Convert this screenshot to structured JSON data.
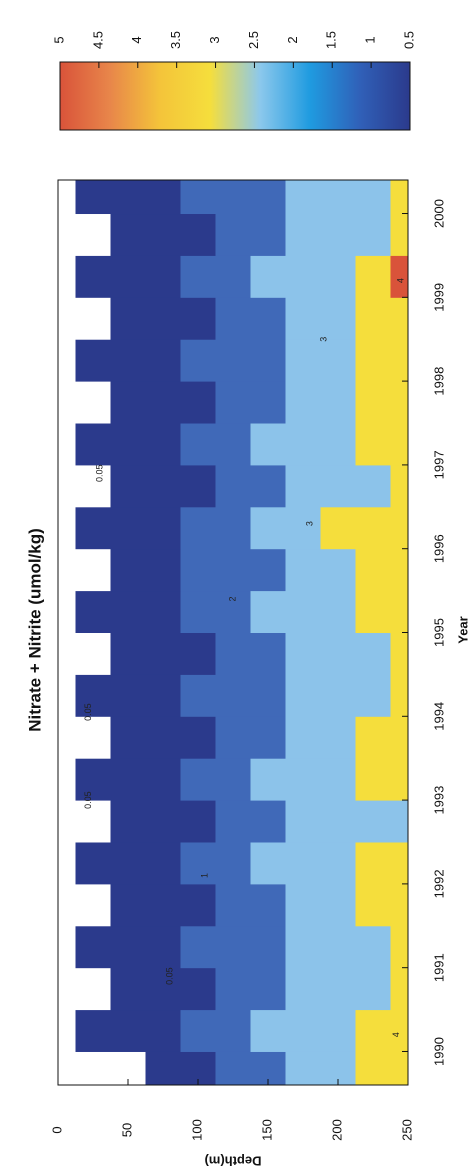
{
  "chart_data": {
    "type": "contour",
    "title": "Nitrate + Nitrite (umol/kg)",
    "x_label": "Year",
    "y_label": "Depth(m)",
    "x": [
      1989.75,
      1990.25,
      1990.75,
      1991.25,
      1991.75,
      1992.25,
      1992.75,
      1993.25,
      1993.75,
      1994.25,
      1994.75,
      1995.25,
      1995.75,
      1996.25,
      1996.75,
      1997.25,
      1997.75,
      1998.25,
      1998.75,
      1999.25,
      1999.75,
      2000.25
    ],
    "y": [
      0,
      25,
      50,
      75,
      100,
      125,
      150,
      175,
      200,
      225,
      250
    ],
    "z": [
      [
        0,
        0,
        0,
        0,
        0,
        0,
        0,
        0,
        0,
        0,
        0,
        0,
        0,
        0,
        0,
        0,
        0,
        0,
        0,
        0,
        0,
        0
      ],
      [
        0,
        0.2,
        0,
        0.1,
        0,
        0.3,
        0,
        0.2,
        0,
        0.1,
        0,
        0.3,
        0,
        0.4,
        0,
        0.2,
        0,
        0.1,
        0,
        0.2,
        0,
        0.3
      ],
      [
        0,
        0.6,
        0.1,
        0.5,
        0.2,
        0.7,
        0.1,
        0.6,
        0.2,
        0.5,
        0.1,
        0.8,
        0.2,
        0.7,
        0.1,
        0.6,
        0.2,
        0.5,
        0.1,
        0.6,
        0.2,
        0.7
      ],
      [
        0.3,
        0.9,
        0.4,
        0.8,
        0.5,
        0.9,
        0.4,
        0.9,
        0.5,
        0.8,
        0.4,
        0.9,
        0.6,
        0.9,
        0.5,
        0.9,
        0.4,
        0.8,
        0.5,
        0.9,
        0.4,
        0.9
      ],
      [
        0.8,
        1.2,
        0.9,
        1.1,
        0.9,
        1.3,
        0.8,
        1.2,
        0.9,
        1.1,
        0.9,
        1.2,
        1.0,
        1.3,
        0.9,
        1.2,
        0.9,
        1.1,
        0.8,
        1.2,
        0.9,
        1.1
      ],
      [
        1.3,
        1.5,
        1.2,
        1.4,
        1.3,
        1.6,
        1.2,
        1.5,
        1.3,
        1.4,
        1.2,
        1.5,
        1.4,
        1.6,
        1.3,
        1.5,
        1.2,
        1.4,
        1.3,
        1.5,
        1.2,
        1.4
      ],
      [
        1.8,
        2.0,
        1.7,
        1.9,
        1.8,
        2.1,
        1.6,
        2.0,
        1.8,
        1.9,
        1.7,
        2.0,
        1.9,
        2.1,
        1.8,
        2.0,
        1.7,
        1.9,
        1.8,
        2.0,
        1.7,
        1.9
      ],
      [
        2.3,
        2.4,
        2.1,
        2.3,
        2.2,
        2.5,
        2.0,
        2.4,
        2.3,
        2.3,
        2.1,
        2.4,
        2.3,
        2.5,
        2.2,
        2.4,
        2.2,
        2.3,
        2.2,
        2.4,
        2.1,
        2.3
      ],
      [
        2.7,
        2.8,
        2.5,
        2.6,
        2.6,
        2.9,
        2.4,
        2.8,
        2.7,
        2.6,
        2.5,
        2.9,
        2.7,
        3.0,
        2.6,
        2.8,
        2.6,
        2.7,
        2.7,
        2.9,
        2.5,
        2.6
      ],
      [
        3.1,
        3.2,
        2.8,
        2.9,
        3.0,
        3.3,
        2.7,
        3.2,
        3.1,
        2.9,
        2.8,
        3.2,
        3.1,
        3.4,
        2.9,
        3.2,
        3.0,
        3.1,
        3.2,
        3.4,
        2.8,
        2.9
      ],
      [
        3.6,
        3.5,
        3.0,
        3.1,
        3.2,
        3.7,
        2.9,
        3.5,
        3.4,
        3.0,
        3.0,
        3.4,
        3.3,
        3.6,
        3.0,
        3.5,
        3.3,
        3.4,
        3.9,
        4.1,
        3.0,
        3.1
      ]
    ],
    "fill_levels": [
      0.05,
      1,
      2,
      3,
      4
    ],
    "fill_colors": [
      "#ffffff",
      "#2b3a8c",
      "#4069b8",
      "#8cc3ea",
      "#f5de3c",
      "#d9533a"
    ],
    "xlim": [
      1989.6,
      2000.4
    ],
    "xticks": [
      1990,
      1991,
      1992,
      1993,
      1994,
      1995,
      1996,
      1997,
      1998,
      1999,
      2000
    ],
    "ylim": [
      0,
      250
    ],
    "y_inverted": true,
    "yticks": [
      0,
      50,
      100,
      150,
      200,
      250
    ],
    "contour_labels": [
      {
        "x": 1993.0,
        "y": 22,
        "value": 0.05
      },
      {
        "x": 1994.05,
        "y": 22,
        "value": 0.05
      },
      {
        "x": 1996.9,
        "y": 30,
        "value": 0.05
      },
      {
        "x": 1990.9,
        "y": 80,
        "value": 0.05
      },
      {
        "x": 1992.1,
        "y": 105,
        "value": 1
      },
      {
        "x": 1995.4,
        "y": 125,
        "value": 2
      },
      {
        "x": 1996.3,
        "y": 180,
        "value": 3
      },
      {
        "x": 1998.5,
        "y": 190,
        "value": 3
      },
      {
        "x": 1999.2,
        "y": 245,
        "value": 4
      },
      {
        "x": 1990.2,
        "y": 242,
        "value": 4
      }
    ],
    "colorbar": {
      "lim": [
        0.5,
        5
      ],
      "ticks": [
        0.5,
        1,
        1.5,
        2,
        2.5,
        3,
        3.5,
        4,
        4.5,
        5
      ],
      "colors": [
        "#2b3a8c",
        "#3060b8",
        "#1f9be0",
        "#8cc8ec",
        "#f5de3c",
        "#f4c43a",
        "#e8864a",
        "#d9533a"
      ]
    }
  }
}
